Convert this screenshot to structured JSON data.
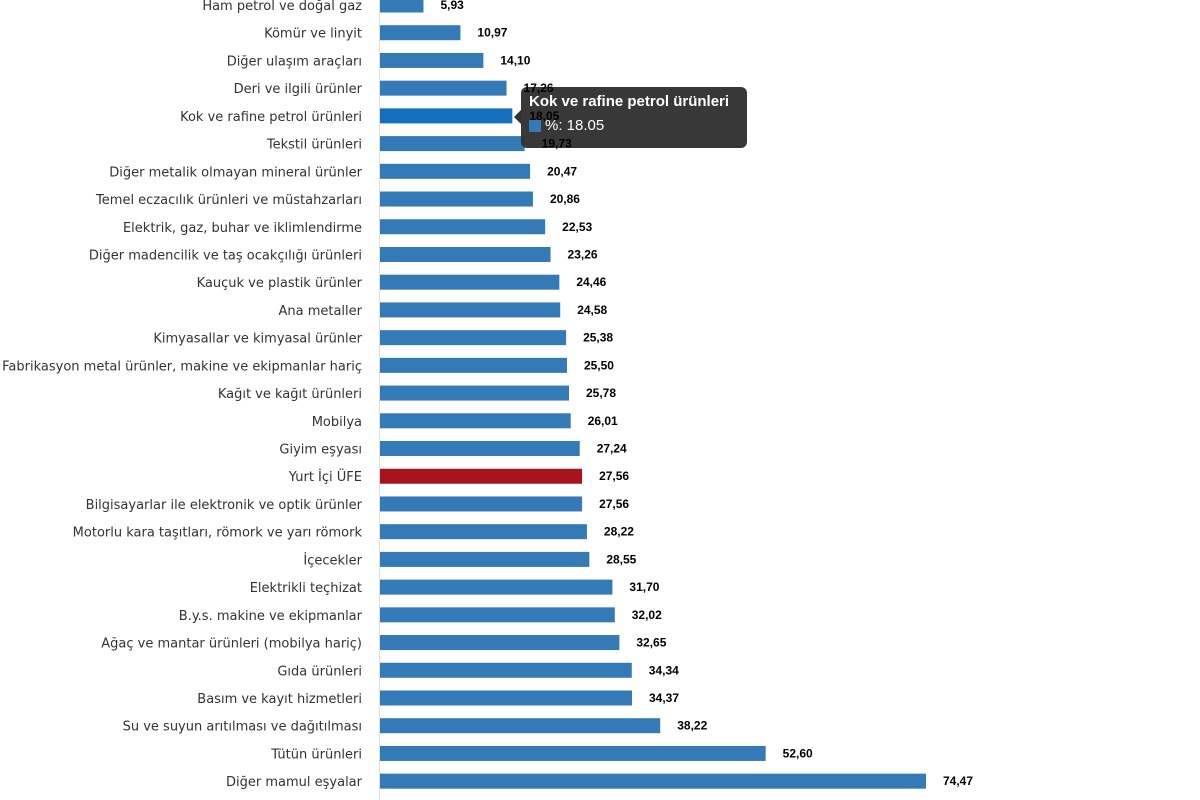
{
  "chart_data": {
    "type": "bar",
    "orientation": "horizontal",
    "title": "",
    "xlabel": "",
    "ylabel": "",
    "grid": false,
    "legend": "none",
    "categories": [
      "Ham petrol ve doğal gaz",
      "Kömür ve linyit",
      "Diğer ulaşım araçları",
      "Deri ve ilgili ürünler",
      "Kok ve rafine petrol ürünleri",
      "Tekstil ürünleri",
      "Diğer metalik olmayan mineral ürünler",
      "Temel eczacılık ürünleri ve müstahzarları",
      "Elektrik, gaz, buhar ve iklimlendirme",
      "Diğer madencilik ve taş ocakçılığı ürünleri",
      "Kauçuk ve plastik ürünler",
      "Ana metaller",
      "Kimyasallar ve kimyasal ürünler",
      "Fabrikasyon metal ürünler, makine ve ekipmanlar hariç",
      "Kağıt ve kağıt ürünleri",
      "Mobilya",
      "Giyim eşyası",
      "Yurt İçi ÜFE",
      "Bilgisayarlar ile elektronik ve optik ürünler",
      "Motorlu kara taşıtları, römork ve yarı römork",
      "İçecekler",
      "Elektrikli teçhizat",
      "B.y.s. makine ve ekipmanlar",
      "Ağaç ve mantar ürünleri (mobilya hariç)",
      "Gıda ürünleri",
      "Basım ve kayıt hizmetleri",
      "Su ve suyun arıtılması ve dağıtılması",
      "Tütün ürünleri",
      "Diğer mamul eşyalar"
    ],
    "values": [
      5.93,
      10.97,
      14.1,
      17.26,
      18.05,
      19.73,
      20.47,
      20.86,
      22.53,
      23.26,
      24.46,
      24.58,
      25.38,
      25.5,
      25.78,
      26.01,
      27.24,
      27.56,
      27.56,
      28.22,
      28.55,
      31.7,
      32.02,
      32.65,
      34.34,
      34.37,
      38.22,
      52.6,
      74.47
    ],
    "value_labels": [
      "5,93",
      "10,97",
      "14,10",
      "17,26",
      "18,05",
      "19,73",
      "20,47",
      "20,86",
      "22,53",
      "23,26",
      "24,46",
      "24,58",
      "25,38",
      "25,50",
      "25,78",
      "26,01",
      "27,24",
      "27,56",
      "27,56",
      "28,22",
      "28,55",
      "31,70",
      "32,02",
      "32,65",
      "34,34",
      "34,37",
      "38,22",
      "52,60",
      "74,47"
    ],
    "xlim": [
      0,
      80
    ],
    "colors": {
      "default": "#337ab7",
      "highlight": "#a8141b",
      "hover": "#1570c0"
    },
    "highlight_index": 17,
    "hover_index": 4
  },
  "tooltip": {
    "title": "Kok ve rafine petrol ürünleri",
    "series_label": "%: 18.05",
    "swatch_color": "#337ab7"
  }
}
